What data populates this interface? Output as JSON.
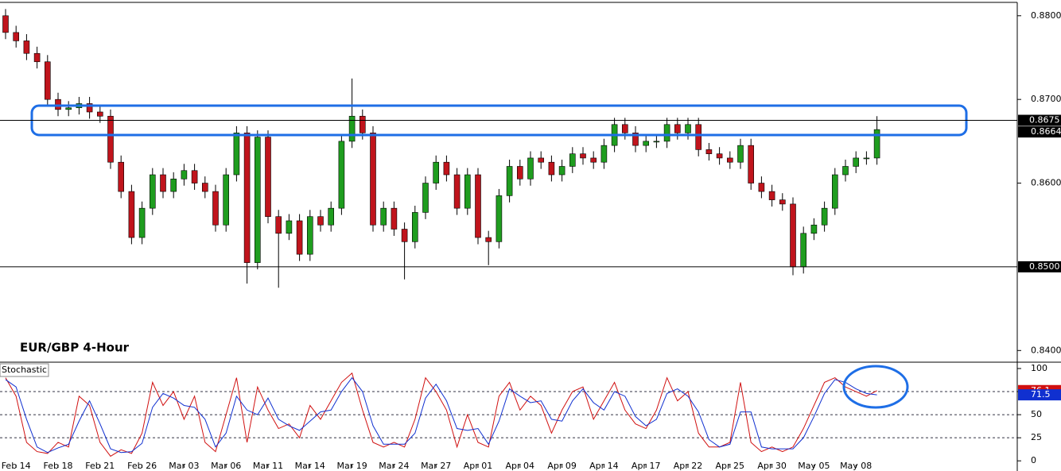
{
  "chart_data": [
    {
      "type": "candlestick",
      "title": "EUR/GBP 4-Hour",
      "up_color": "#1f9d1f",
      "down_color": "#c0141c",
      "ylim": [
        0.8387,
        0.8815
      ],
      "yticks": [
        {
          "value": 0.88,
          "label": "0.8800"
        },
        {
          "value": 0.87,
          "label": "0.8700"
        },
        {
          "value": 0.86,
          "label": "0.8600"
        },
        {
          "value": 0.84,
          "label": "0.8400"
        }
      ],
      "hlines": [
        {
          "value": 0.8675,
          "label": "0.8675"
        },
        {
          "value": 0.85,
          "label": "0.8500"
        }
      ],
      "open": [
        0.88,
        0.878,
        0.877,
        0.8755,
        0.8745,
        0.87,
        0.8688,
        0.869,
        0.8695,
        0.8685,
        0.868,
        0.8625,
        0.859,
        0.8535,
        0.857,
        0.861,
        0.859,
        0.8605,
        0.8615,
        0.86,
        0.859,
        0.855,
        0.861,
        0.866,
        0.8505,
        0.8655,
        0.856,
        0.854,
        0.8555,
        0.8515,
        0.856,
        0.855,
        0.857,
        0.865,
        0.868,
        0.866,
        0.855,
        0.857,
        0.8545,
        0.853,
        0.8565,
        0.86,
        0.8625,
        0.861,
        0.857,
        0.861,
        0.8535,
        0.853,
        0.8585,
        0.862,
        0.8605,
        0.863,
        0.8625,
        0.861,
        0.862,
        0.8635,
        0.863,
        0.8625,
        0.8645,
        0.867,
        0.866,
        0.8645,
        0.865,
        0.865,
        0.867,
        0.866,
        0.867,
        0.864,
        0.8635,
        0.863,
        0.8625,
        0.8645,
        0.86,
        0.859,
        0.858,
        0.8575,
        0.85,
        0.854,
        0.855,
        0.857,
        0.861,
        0.862,
        0.863,
        0.863
      ],
      "high": [
        0.8808,
        0.8788,
        0.8778,
        0.8763,
        0.8753,
        0.8708,
        0.8698,
        0.8703,
        0.8703,
        0.8693,
        0.8688,
        0.8633,
        0.8598,
        0.8578,
        0.8618,
        0.8618,
        0.8613,
        0.8623,
        0.8623,
        0.8608,
        0.8598,
        0.8618,
        0.8668,
        0.8668,
        0.8663,
        0.8663,
        0.8568,
        0.8563,
        0.8563,
        0.8568,
        0.8568,
        0.8578,
        0.8658,
        0.8725,
        0.8688,
        0.8668,
        0.8578,
        0.8578,
        0.8553,
        0.8573,
        0.8608,
        0.8633,
        0.8633,
        0.8618,
        0.8618,
        0.8618,
        0.8543,
        0.8593,
        0.8628,
        0.8628,
        0.8638,
        0.8638,
        0.8633,
        0.8628,
        0.8643,
        0.8643,
        0.8638,
        0.8653,
        0.8678,
        0.8678,
        0.8668,
        0.8658,
        0.8658,
        0.8678,
        0.8678,
        0.8678,
        0.8678,
        0.8648,
        0.8643,
        0.8638,
        0.8653,
        0.8653,
        0.8608,
        0.8598,
        0.8588,
        0.8583,
        0.8548,
        0.8558,
        0.8578,
        0.8618,
        0.8628,
        0.8638,
        0.8638,
        0.868
      ],
      "low": [
        0.8772,
        0.8762,
        0.8747,
        0.8737,
        0.8692,
        0.868,
        0.868,
        0.8682,
        0.8677,
        0.8672,
        0.8617,
        0.8582,
        0.8527,
        0.8527,
        0.8562,
        0.8582,
        0.8582,
        0.8597,
        0.8592,
        0.8582,
        0.8542,
        0.8542,
        0.8602,
        0.848,
        0.8497,
        0.8552,
        0.8475,
        0.8532,
        0.8507,
        0.8507,
        0.8542,
        0.8542,
        0.8562,
        0.8642,
        0.8652,
        0.8542,
        0.8542,
        0.8537,
        0.8485,
        0.8522,
        0.8557,
        0.8592,
        0.8602,
        0.8562,
        0.8562,
        0.8527,
        0.8502,
        0.8522,
        0.8577,
        0.8597,
        0.8597,
        0.8617,
        0.8602,
        0.8602,
        0.8612,
        0.8622,
        0.8617,
        0.8617,
        0.8637,
        0.8652,
        0.8637,
        0.8637,
        0.8642,
        0.8642,
        0.8652,
        0.8652,
        0.8632,
        0.8627,
        0.8622,
        0.8617,
        0.8617,
        0.8592,
        0.8582,
        0.8572,
        0.8567,
        0.849,
        0.8492,
        0.8532,
        0.8542,
        0.8562,
        0.8602,
        0.8612,
        0.8622,
        0.8622
      ],
      "close": [
        0.878,
        0.877,
        0.8755,
        0.8745,
        0.87,
        0.8688,
        0.869,
        0.8695,
        0.8685,
        0.868,
        0.8625,
        0.859,
        0.8535,
        0.857,
        0.861,
        0.859,
        0.8605,
        0.8615,
        0.86,
        0.859,
        0.855,
        0.861,
        0.866,
        0.8505,
        0.8655,
        0.856,
        0.854,
        0.8555,
        0.8515,
        0.856,
        0.855,
        0.857,
        0.865,
        0.868,
        0.866,
        0.855,
        0.857,
        0.8545,
        0.853,
        0.8565,
        0.86,
        0.8625,
        0.861,
        0.857,
        0.861,
        0.8535,
        0.853,
        0.8585,
        0.862,
        0.8605,
        0.863,
        0.8625,
        0.861,
        0.862,
        0.8635,
        0.863,
        0.8625,
        0.8645,
        0.867,
        0.866,
        0.8645,
        0.865,
        0.865,
        0.867,
        0.866,
        0.867,
        0.864,
        0.8635,
        0.863,
        0.8625,
        0.8645,
        0.86,
        0.859,
        0.858,
        0.8575,
        0.85,
        0.854,
        0.855,
        0.857,
        0.861,
        0.862,
        0.863,
        0.863,
        0.8664
      ]
    },
    {
      "type": "line",
      "title": "Stochastic",
      "categories": [
        null,
        "Feb 14",
        null,
        null,
        null,
        "Feb 18",
        null,
        null,
        null,
        "Feb 21",
        null,
        null,
        null,
        "Feb 26",
        null,
        null,
        null,
        "Mar 03",
        null,
        null,
        null,
        "Mar 06",
        null,
        null,
        null,
        "Mar 11",
        null,
        null,
        null,
        "Mar 14",
        null,
        null,
        null,
        "Mar 19",
        null,
        null,
        null,
        "Mar 24",
        null,
        null,
        null,
        "Mar 27",
        null,
        null,
        null,
        "Apr 01",
        null,
        null,
        null,
        "Apr 04",
        null,
        null,
        null,
        "Apr 09",
        null,
        null,
        null,
        "Apr 14",
        null,
        null,
        null,
        "Apr 17",
        null,
        null,
        null,
        "Apr 22",
        null,
        null,
        null,
        "Apr 25",
        null,
        null,
        null,
        "Apr 30",
        null,
        null,
        null,
        "May 05",
        null,
        null,
        null,
        "May 08",
        null,
        null
      ],
      "ylim": [
        -11,
        106
      ],
      "yticks": [
        100,
        75,
        50,
        25,
        0
      ],
      "levels": [
        75,
        50,
        25
      ],
      "series": [
        {
          "color": "#d01010",
          "values": [
            90,
            70,
            20,
            10,
            8,
            20,
            15,
            70,
            60,
            20,
            5,
            12,
            8,
            30,
            85,
            60,
            75,
            45,
            70,
            20,
            10,
            50,
            90,
            20,
            80,
            55,
            35,
            40,
            25,
            60,
            45,
            65,
            85,
            95,
            55,
            20,
            15,
            20,
            15,
            45,
            90,
            75,
            55,
            15,
            50,
            20,
            15,
            70,
            85,
            55,
            70,
            60,
            30,
            55,
            75,
            80,
            45,
            65,
            85,
            55,
            40,
            35,
            55,
            90,
            65,
            75,
            30,
            15,
            15,
            20,
            85,
            20,
            10,
            15,
            10,
            15,
            35,
            60,
            85,
            90,
            80,
            75,
            70,
            76.1
          ]
        },
        {
          "color": "#1030d0",
          "values": [
            88,
            80,
            45,
            15,
            9,
            14,
            18,
            43,
            65,
            40,
            13,
            9,
            10,
            19,
            58,
            73,
            68,
            60,
            58,
            45,
            15,
            30,
            70,
            55,
            50,
            68,
            45,
            38,
            33,
            43,
            53,
            55,
            75,
            90,
            75,
            38,
            18,
            18,
            18,
            30,
            68,
            83,
            65,
            35,
            33,
            35,
            18,
            43,
            78,
            70,
            63,
            65,
            45,
            43,
            65,
            78,
            63,
            55,
            75,
            70,
            48,
            38,
            45,
            73,
            78,
            70,
            53,
            23,
            15,
            18,
            53,
            53,
            15,
            13,
            13,
            13,
            25,
            48,
            73,
            88,
            85,
            78,
            73,
            71.5
          ]
        }
      ]
    }
  ]
}
